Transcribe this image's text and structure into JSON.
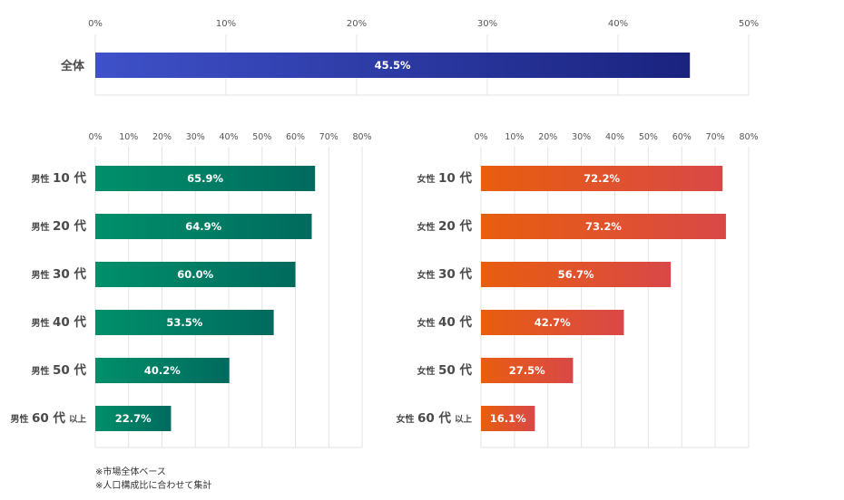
{
  "colors": {
    "total_start": "#3f51c9",
    "total_end": "#1a237e",
    "male_start": "#00906a",
    "male_end": "#006a5e",
    "female_start": "#e85e0e",
    "female_end": "#d94848",
    "grid": "#e3e3e3",
    "label": "#4a4a4a",
    "value_text": "#ffffff"
  },
  "notes": [
    "※市場全体ベース",
    "※人口構成比に合わせて集計"
  ],
  "chart_data": [
    {
      "type": "bar",
      "orientation": "horizontal",
      "categories": [
        "全体"
      ],
      "values": [
        45.5
      ],
      "value_labels": [
        "45.5%"
      ],
      "xlim": [
        0,
        50
      ],
      "x_ticks": [
        "0%",
        "10%",
        "20%",
        "30%",
        "40%",
        "50%"
      ],
      "grid": true
    },
    {
      "type": "bar",
      "orientation": "horizontal",
      "categories": [
        {
          "gender": "男性",
          "age": "10 代",
          "suffix": ""
        },
        {
          "gender": "男性",
          "age": "20 代",
          "suffix": ""
        },
        {
          "gender": "男性",
          "age": "30 代",
          "suffix": ""
        },
        {
          "gender": "男性",
          "age": "40 代",
          "suffix": ""
        },
        {
          "gender": "男性",
          "age": "50 代",
          "suffix": ""
        },
        {
          "gender": "男性",
          "age": "60 代",
          "suffix": "以上"
        }
      ],
      "values": [
        65.9,
        64.9,
        60.0,
        53.5,
        40.2,
        22.7
      ],
      "value_labels": [
        "65.9%",
        "64.9%",
        "60.0%",
        "53.5%",
        "40.2%",
        "22.7%"
      ],
      "xlim": [
        0,
        80
      ],
      "x_ticks": [
        "0%",
        "10%",
        "20%",
        "30%",
        "40%",
        "50%",
        "60%",
        "70%",
        "80%"
      ],
      "grid": true
    },
    {
      "type": "bar",
      "orientation": "horizontal",
      "categories": [
        {
          "gender": "女性",
          "age": "10 代",
          "suffix": ""
        },
        {
          "gender": "女性",
          "age": "20 代",
          "suffix": ""
        },
        {
          "gender": "女性",
          "age": "30 代",
          "suffix": ""
        },
        {
          "gender": "女性",
          "age": "40 代",
          "suffix": ""
        },
        {
          "gender": "女性",
          "age": "50 代",
          "suffix": ""
        },
        {
          "gender": "女性",
          "age": "60 代",
          "suffix": "以上"
        }
      ],
      "values": [
        72.2,
        73.2,
        56.7,
        42.7,
        27.5,
        16.1
      ],
      "value_labels": [
        "72.2%",
        "73.2%",
        "56.7%",
        "42.7%",
        "27.5%",
        "16.1%"
      ],
      "xlim": [
        0,
        80
      ],
      "x_ticks": [
        "0%",
        "10%",
        "20%",
        "30%",
        "40%",
        "50%",
        "60%",
        "70%",
        "80%"
      ],
      "grid": true
    }
  ]
}
